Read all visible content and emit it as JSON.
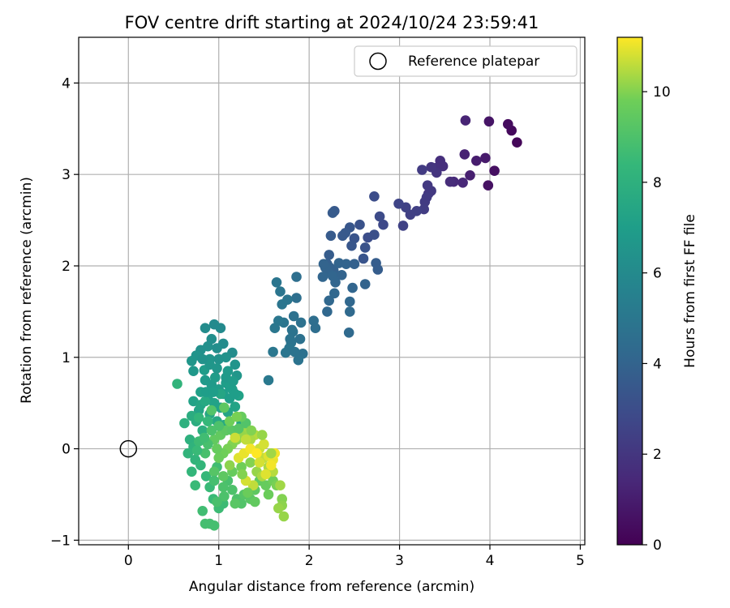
{
  "chart_data": {
    "type": "scatter",
    "title": "FOV centre drift starting at 2024/10/24 23:59:41",
    "xlabel": "Angular distance from reference (arcmin)",
    "ylabel": "Rotation from reference (arcmin)",
    "xlim": [
      -0.55,
      5.05
    ],
    "ylim": [
      -1.05,
      4.5
    ],
    "xticks": [
      0,
      1,
      2,
      3,
      4,
      5
    ],
    "yticks": [
      -1,
      0,
      1,
      2,
      3,
      4
    ],
    "grid": true,
    "legend": {
      "placement": "top-right",
      "entries": [
        "Reference platepar"
      ]
    },
    "reference_point": {
      "x": 0,
      "y": 0,
      "label": "Reference platepar"
    },
    "colorbar": {
      "label": "Hours from first FF file",
      "range": [
        0,
        11.2
      ],
      "ticks": [
        0,
        2,
        4,
        6,
        8,
        10
      ],
      "colormap": "viridis"
    },
    "points": [
      [
        4.3,
        3.35,
        0.2
      ],
      [
        4.24,
        3.48,
        0.3
      ],
      [
        4.2,
        3.55,
        0.4
      ],
      [
        4.05,
        3.04,
        0.5
      ],
      [
        3.98,
        2.88,
        0.6
      ],
      [
        3.99,
        3.58,
        0.7
      ],
      [
        3.95,
        3.18,
        0.9
      ],
      [
        3.85,
        3.15,
        1.0
      ],
      [
        3.78,
        2.99,
        1.1
      ],
      [
        3.72,
        3.22,
        1.2
      ],
      [
        3.73,
        3.59,
        1.3
      ],
      [
        3.7,
        2.91,
        1.4
      ],
      [
        3.6,
        2.92,
        1.5
      ],
      [
        3.56,
        2.92,
        1.6
      ],
      [
        3.48,
        3.09,
        1.7
      ],
      [
        3.45,
        3.15,
        1.7
      ],
      [
        3.4,
        3.07,
        1.8
      ],
      [
        3.41,
        3.02,
        1.9
      ],
      [
        3.35,
        3.08,
        2.0
      ],
      [
        3.32,
        2.79,
        2.0
      ],
      [
        3.35,
        2.82,
        2.1
      ],
      [
        3.31,
        2.88,
        2.1
      ],
      [
        3.3,
        2.75,
        2.2
      ],
      [
        3.28,
        2.7,
        2.2
      ],
      [
        3.25,
        3.05,
        2.2
      ],
      [
        3.27,
        2.62,
        2.3
      ],
      [
        3.19,
        2.6,
        2.4
      ],
      [
        3.12,
        2.56,
        2.4
      ],
      [
        3.07,
        2.64,
        2.5
      ],
      [
        3.04,
        2.44,
        2.5
      ],
      [
        2.99,
        2.68,
        2.6
      ],
      [
        2.82,
        2.45,
        2.8
      ],
      [
        2.78,
        2.54,
        2.9
      ],
      [
        2.72,
        2.76,
        3.0
      ],
      [
        2.65,
        2.31,
        3.0
      ],
      [
        2.72,
        2.34,
        3.1
      ],
      [
        2.62,
        2.2,
        3.2
      ],
      [
        2.6,
        2.08,
        3.3
      ],
      [
        2.56,
        2.45,
        3.2
      ],
      [
        2.5,
        2.3,
        3.3
      ],
      [
        2.47,
        2.22,
        3.4
      ],
      [
        2.45,
        2.42,
        3.4
      ],
      [
        2.4,
        2.36,
        3.5
      ],
      [
        2.37,
        2.33,
        3.5
      ],
      [
        2.28,
        2.6,
        3.5
      ],
      [
        2.26,
        2.58,
        3.6
      ],
      [
        2.24,
        2.33,
        3.6
      ],
      [
        2.22,
        2.12,
        3.7
      ],
      [
        2.2,
        2.02,
        3.8
      ],
      [
        2.23,
        1.98,
        3.9
      ],
      [
        2.27,
        1.95,
        3.9
      ],
      [
        2.21,
        1.93,
        4.0
      ],
      [
        2.18,
        1.98,
        4.0
      ],
      [
        2.16,
        2.02,
        4.0
      ],
      [
        2.15,
        1.88,
        4.1
      ],
      [
        2.26,
        1.89,
        4.1
      ],
      [
        2.29,
        1.82,
        4.1
      ],
      [
        2.33,
        2.03,
        4.0
      ],
      [
        2.36,
        1.9,
        4.0
      ],
      [
        2.41,
        2.02,
        4.0
      ],
      [
        2.5,
        2.02,
        3.9
      ],
      [
        2.74,
        2.03,
        3.7
      ],
      [
        2.76,
        1.96,
        3.7
      ],
      [
        2.62,
        1.8,
        4.0
      ],
      [
        2.48,
        1.76,
        4.1
      ],
      [
        2.45,
        1.61,
        4.2
      ],
      [
        2.45,
        1.5,
        4.3
      ],
      [
        2.44,
        1.27,
        4.3
      ],
      [
        2.2,
        1.5,
        4.2
      ],
      [
        2.22,
        1.62,
        4.2
      ],
      [
        2.28,
        1.7,
        4.2
      ],
      [
        2.05,
        1.4,
        4.5
      ],
      [
        2.07,
        1.32,
        4.5
      ],
      [
        1.93,
        1.04,
        4.7
      ],
      [
        1.9,
        1.2,
        4.7
      ],
      [
        1.88,
        0.97,
        4.8
      ],
      [
        1.86,
        1.88,
        4.6
      ],
      [
        1.86,
        1.65,
        4.6
      ],
      [
        1.83,
        1.45,
        4.7
      ],
      [
        1.82,
        1.28,
        4.8
      ],
      [
        1.8,
        1.16,
        4.8
      ],
      [
        1.78,
        1.1,
        4.9
      ],
      [
        1.74,
        1.05,
        4.9
      ],
      [
        1.72,
        1.38,
        4.9
      ],
      [
        1.7,
        1.58,
        4.9
      ],
      [
        1.68,
        1.72,
        4.9
      ],
      [
        1.66,
        1.4,
        5.0
      ],
      [
        1.64,
        1.82,
        4.9
      ],
      [
        1.62,
        1.32,
        5.0
      ],
      [
        1.6,
        1.06,
        5.0
      ],
      [
        1.55,
        0.75,
        5.1
      ],
      [
        1.76,
        1.63,
        4.9
      ],
      [
        1.81,
        1.3,
        4.8
      ],
      [
        1.91,
        1.38,
        4.7
      ],
      [
        1.79,
        1.2,
        4.8
      ],
      [
        1.84,
        1.06,
        4.8
      ],
      [
        1.15,
        1.05,
        6.1
      ],
      [
        1.02,
        1.32,
        6.0
      ],
      [
        0.95,
        1.36,
        6.0
      ],
      [
        0.85,
        1.32,
        6.1
      ],
      [
        0.92,
        1.2,
        6.2
      ],
      [
        1.05,
        1.15,
        6.1
      ],
      [
        0.98,
        1.1,
        6.2
      ],
      [
        0.88,
        1.12,
        6.3
      ],
      [
        0.8,
        1.08,
        6.3
      ],
      [
        0.75,
        1.02,
        6.5
      ],
      [
        0.7,
        0.96,
        6.6
      ],
      [
        0.72,
        0.85,
        6.7
      ],
      [
        0.9,
        0.98,
        6.5
      ],
      [
        1.0,
        0.98,
        6.4
      ],
      [
        1.08,
        1.0,
        6.4
      ],
      [
        1.18,
        0.92,
        6.5
      ],
      [
        1.2,
        0.8,
        6.6
      ],
      [
        0.85,
        0.75,
        6.8
      ],
      [
        0.92,
        0.7,
        6.8
      ],
      [
        1.0,
        0.65,
        6.9
      ],
      [
        1.05,
        0.6,
        7.0
      ],
      [
        1.12,
        0.55,
        7.0
      ],
      [
        0.8,
        0.62,
        7.1
      ],
      [
        0.88,
        0.55,
        7.1
      ],
      [
        0.95,
        0.5,
        7.2
      ],
      [
        1.02,
        0.45,
        7.2
      ],
      [
        1.1,
        0.4,
        7.3
      ],
      [
        0.72,
        0.52,
        7.2
      ],
      [
        0.78,
        0.42,
        7.3
      ],
      [
        1.18,
        0.46,
        7.3
      ],
      [
        1.25,
        0.28,
        7.4
      ],
      [
        0.84,
        0.86,
        6.9
      ],
      [
        0.96,
        0.78,
        6.9
      ],
      [
        1.08,
        0.72,
        7.0
      ],
      [
        1.15,
        0.65,
        7.1
      ],
      [
        0.8,
        0.48,
        7.4
      ],
      [
        0.9,
        0.38,
        7.5
      ],
      [
        0.98,
        0.3,
        7.5
      ],
      [
        1.06,
        0.26,
        7.6
      ],
      [
        0.7,
        0.36,
        7.8
      ],
      [
        0.75,
        0.3,
        7.8
      ],
      [
        0.82,
        0.2,
        7.9
      ],
      [
        0.68,
        0.1,
        8.0
      ],
      [
        0.72,
        0.02,
        8.1
      ],
      [
        0.66,
        -0.05,
        8.2
      ],
      [
        0.74,
        -0.12,
        8.2
      ],
      [
        0.7,
        -0.25,
        8.3
      ],
      [
        0.8,
        -0.18,
        8.3
      ],
      [
        0.86,
        -0.3,
        8.4
      ],
      [
        0.9,
        -0.42,
        8.5
      ],
      [
        0.94,
        -0.55,
        8.5
      ],
      [
        1.0,
        -0.65,
        8.6
      ],
      [
        1.05,
        -0.6,
        8.6
      ],
      [
        0.82,
        -0.68,
        8.7
      ],
      [
        0.85,
        -0.82,
        8.8
      ],
      [
        0.9,
        -0.82,
        8.8
      ],
      [
        0.95,
        -0.84,
        8.8
      ],
      [
        0.54,
        0.71,
        8.2
      ],
      [
        0.62,
        0.28,
        8.0
      ],
      [
        0.85,
        0.52,
        7.6
      ],
      [
        0.98,
        -0.2,
        8.7
      ],
      [
        1.1,
        -0.35,
        8.9
      ],
      [
        1.15,
        -0.45,
        9.0
      ],
      [
        1.2,
        -0.55,
        9.0
      ],
      [
        1.25,
        -0.6,
        9.1
      ],
      [
        1.28,
        -0.5,
        9.2
      ],
      [
        1.35,
        -0.55,
        9.3
      ],
      [
        1.4,
        -0.45,
        9.4
      ],
      [
        1.45,
        -0.35,
        9.5
      ],
      [
        1.52,
        -0.4,
        9.6
      ],
      [
        1.55,
        -0.5,
        9.7
      ],
      [
        1.6,
        -0.35,
        9.8
      ],
      [
        1.64,
        -0.4,
        9.9
      ],
      [
        1.7,
        -0.55,
        10.0
      ],
      [
        1.7,
        -0.62,
        10.1
      ],
      [
        1.72,
        -0.74,
        10.2
      ],
      [
        1.66,
        -0.65,
        10.2
      ],
      [
        1.68,
        -0.4,
        10.3
      ],
      [
        1.55,
        -0.2,
        10.4
      ],
      [
        1.6,
        -0.25,
        10.5
      ],
      [
        1.5,
        -0.1,
        10.6
      ],
      [
        1.45,
        0.0,
        10.7
      ],
      [
        1.5,
        0.05,
        10.8
      ],
      [
        1.55,
        -0.08,
        10.9
      ],
      [
        1.6,
        -0.12,
        11.0
      ],
      [
        1.58,
        -0.18,
        11.1
      ],
      [
        1.62,
        -0.05,
        11.1
      ],
      [
        1.4,
        0.15,
        10.5
      ],
      [
        1.35,
        0.1,
        10.4
      ],
      [
        1.3,
        0.2,
        10.3
      ],
      [
        1.25,
        0.15,
        10.2
      ],
      [
        1.2,
        0.1,
        10.1
      ],
      [
        1.15,
        0.05,
        10.0
      ],
      [
        1.1,
        0.0,
        9.9
      ],
      [
        1.05,
        -0.05,
        9.8
      ],
      [
        1.0,
        -0.1,
        9.7
      ],
      [
        0.98,
        0.0,
        9.6
      ],
      [
        0.95,
        0.1,
        9.5
      ],
      [
        1.02,
        0.15,
        9.5
      ],
      [
        1.08,
        0.2,
        9.4
      ],
      [
        1.15,
        0.2,
        9.3
      ],
      [
        1.22,
        0.22,
        9.2
      ],
      [
        1.3,
        0.28,
        9.1
      ],
      [
        1.0,
        0.25,
        9.0
      ],
      [
        0.92,
        0.2,
        9.0
      ],
      [
        0.88,
        0.05,
        8.9
      ],
      [
        0.85,
        -0.05,
        8.9
      ],
      [
        0.95,
        -0.25,
        9.2
      ],
      [
        1.05,
        -0.3,
        9.4
      ],
      [
        1.15,
        -0.25,
        9.6
      ],
      [
        1.25,
        -0.2,
        9.8
      ],
      [
        1.35,
        -0.15,
        10.0
      ],
      [
        1.42,
        -0.25,
        10.2
      ],
      [
        1.48,
        -0.3,
        10.4
      ],
      [
        1.38,
        -0.4,
        10.6
      ],
      [
        1.3,
        -0.35,
        10.8
      ],
      [
        1.22,
        -0.1,
        10.9
      ],
      [
        1.28,
        -0.05,
        11.0
      ],
      [
        1.35,
        0.0,
        11.1
      ],
      [
        1.42,
        -0.05,
        11.2
      ],
      [
        1.18,
        -0.6,
        9.3
      ],
      [
        1.05,
        -0.42,
        9.0
      ],
      [
        0.95,
        -0.35,
        8.8
      ],
      [
        1.25,
        0.35,
        9.6
      ],
      [
        1.3,
        0.1,
        10.6
      ],
      [
        1.45,
        -0.15,
        10.8
      ],
      [
        1.52,
        -0.28,
        10.9
      ],
      [
        0.78,
        0.08,
        8.6
      ],
      [
        0.88,
        0.3,
        8.4
      ],
      [
        1.12,
        0.3,
        9.8
      ],
      [
        1.2,
        0.35,
        9.9
      ],
      [
        1.36,
        0.2,
        10.0
      ],
      [
        1.48,
        0.15,
        10.2
      ],
      [
        1.58,
        -0.05,
        10.3
      ],
      [
        1.4,
        -0.58,
        9.5
      ],
      [
        1.32,
        -0.48,
        9.7
      ],
      [
        0.74,
        -0.4,
        8.5
      ],
      [
        0.78,
        0.34,
        8.3
      ],
      [
        0.76,
        -0.02,
        8.5
      ],
      [
        0.84,
        0.12,
        8.7
      ],
      [
        1.06,
        0.45,
        9.4
      ],
      [
        0.92,
        0.42,
        9.1
      ],
      [
        1.18,
        0.12,
        10.7
      ],
      [
        1.26,
        -0.28,
        10.0
      ],
      [
        1.12,
        -0.18,
        10.1
      ],
      [
        1.06,
        -0.52,
        9.0
      ],
      [
        0.98,
        -0.58,
        8.9
      ],
      [
        1.02,
        0.6,
        7.4
      ],
      [
        1.12,
        0.68,
        7.0
      ],
      [
        1.22,
        0.58,
        7.2
      ],
      [
        0.9,
        0.92,
        6.6
      ],
      [
        1.1,
        0.85,
        6.8
      ],
      [
        0.82,
        0.98,
        6.4
      ],
      [
        0.98,
        0.88,
        6.6
      ],
      [
        1.08,
        0.78,
        6.8
      ],
      [
        1.16,
        0.74,
        6.9
      ],
      [
        1.18,
        0.6,
        7.0
      ],
      [
        0.86,
        0.62,
        7.0
      ],
      [
        0.94,
        0.62,
        7.0
      ]
    ]
  }
}
